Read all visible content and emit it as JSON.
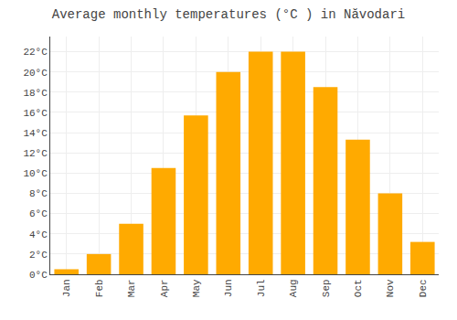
{
  "chart_data": {
    "type": "bar",
    "title": "Average monthly temperatures (°C ) in Năvodari",
    "categories": [
      "Jan",
      "Feb",
      "Mar",
      "Apr",
      "May",
      "Jun",
      "Jul",
      "Aug",
      "Sep",
      "Oct",
      "Nov",
      "Dec"
    ],
    "values": [
      0.5,
      2.0,
      5.0,
      10.5,
      15.7,
      20.0,
      22.0,
      22.0,
      18.5,
      13.3,
      8.0,
      3.2
    ],
    "color": "#FFAA00",
    "ylim": [
      0,
      23.5
    ],
    "yticks": [
      {
        "value": 0,
        "label": "0°C"
      },
      {
        "value": 2,
        "label": "2°C"
      },
      {
        "value": 4,
        "label": "4°C"
      },
      {
        "value": 6,
        "label": "6°C"
      },
      {
        "value": 8,
        "label": "8°C"
      },
      {
        "value": 10,
        "label": "10°C"
      },
      {
        "value": 12,
        "label": "12°C"
      },
      {
        "value": 14,
        "label": "14°C"
      },
      {
        "value": 16,
        "label": "16°C"
      },
      {
        "value": 18,
        "label": "18°C"
      },
      {
        "value": 20,
        "label": "20°C"
      },
      {
        "value": 22,
        "label": "22°C"
      }
    ],
    "grid": true
  }
}
